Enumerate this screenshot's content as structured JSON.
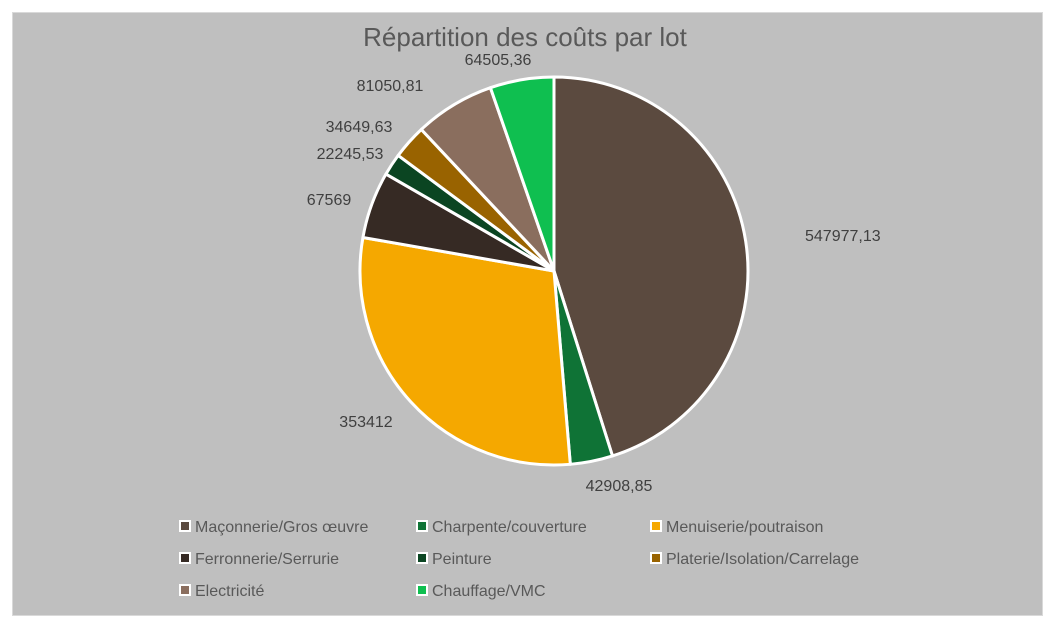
{
  "chart_data": {
    "type": "pie",
    "title": "Répartition des coûts par lot",
    "start_angle_deg": 0,
    "direction": "clockwise",
    "slices": [
      {
        "label": "Maçonnerie/Gros œuvre",
        "value": 547977.13,
        "value_label": "547977,13",
        "color": "#5b4a3f"
      },
      {
        "label": "Charpente/couverture",
        "value": 42908.85,
        "value_label": "42908,85",
        "color": "#0f7336"
      },
      {
        "label": "Menuiserie/poutraison",
        "value": 353412,
        "value_label": "353412",
        "color": "#f5a800"
      },
      {
        "label": "Ferronnerie/Serrurie",
        "value": 67569,
        "value_label": "67569",
        "color": "#362a24"
      },
      {
        "label": "Peinture",
        "value": 22245.53,
        "value_label": "22245,53",
        "color": "#0b4522"
      },
      {
        "label": "Platerie/Isolation/Carrelage",
        "value": 34649.63,
        "value_label": "34649,63",
        "color": "#996300"
      },
      {
        "label": "Electricité",
        "value": 81050.81,
        "value_label": "81050,81",
        "color": "#8a6e5e"
      },
      {
        "label": "Chauffage/VMC",
        "value": 64505.36,
        "value_label": "64505,36",
        "color": "#0fbf50"
      }
    ],
    "legend_position": "bottom",
    "background": "#bfbfbf"
  }
}
